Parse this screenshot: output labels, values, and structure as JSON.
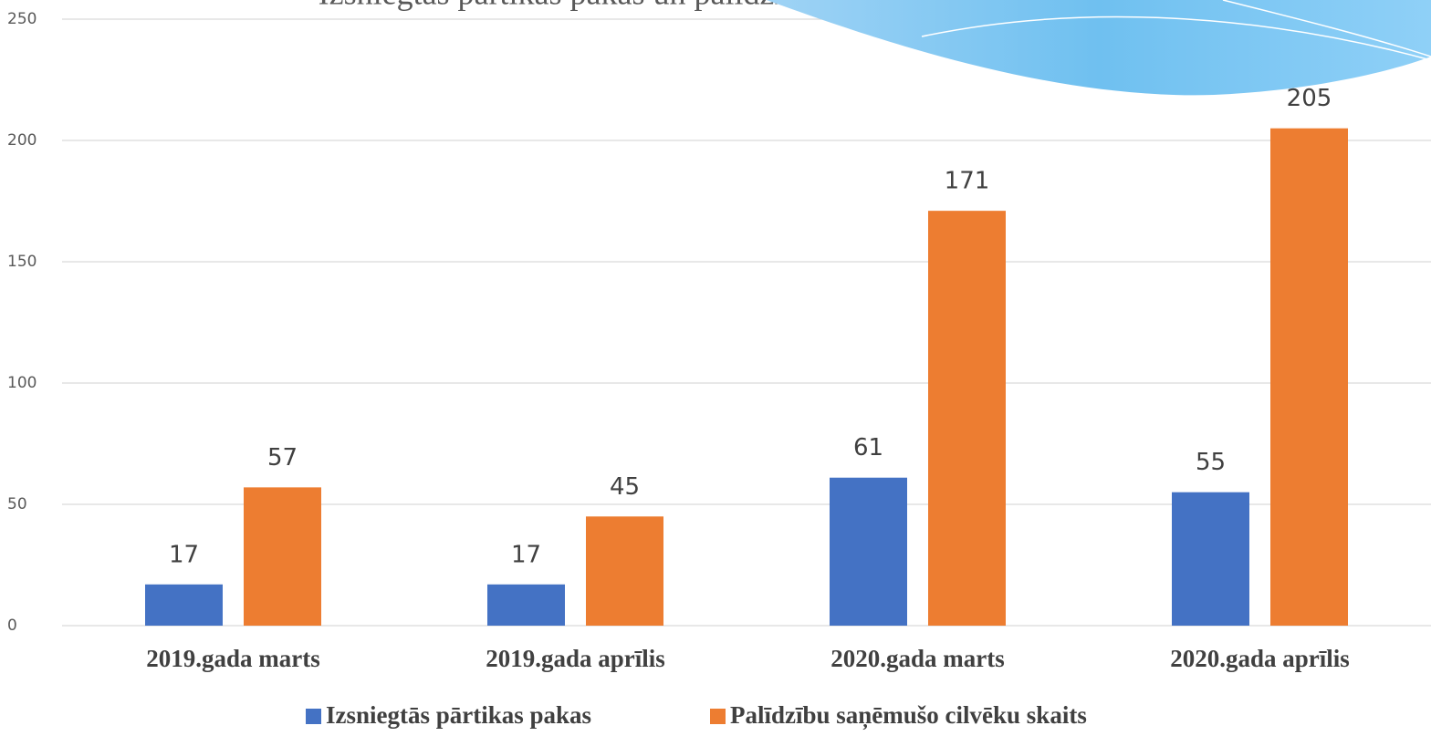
{
  "chart_data": {
    "type": "bar",
    "title": "Izsniegtās pārtikas pakas un palīdzību saņēmušo cilvēku skaits",
    "categories": [
      "2019.gada marts",
      "2019.gada aprīlis",
      "2020.gada marts",
      "2020.gada aprīlis"
    ],
    "series": [
      {
        "name": "Izsniegtās pārtikas pakas",
        "color": "#4472c4",
        "values": [
          17,
          17,
          61,
          55
        ]
      },
      {
        "name": "Palīdzību saņēmušo cilvēku skaits",
        "color": "#ed7d31",
        "values": [
          57,
          45,
          171,
          205
        ]
      }
    ],
    "ylim": [
      0,
      250
    ],
    "yticks": [
      0,
      50,
      100,
      150,
      200,
      250
    ],
    "grid": true,
    "legend": "bottom"
  }
}
